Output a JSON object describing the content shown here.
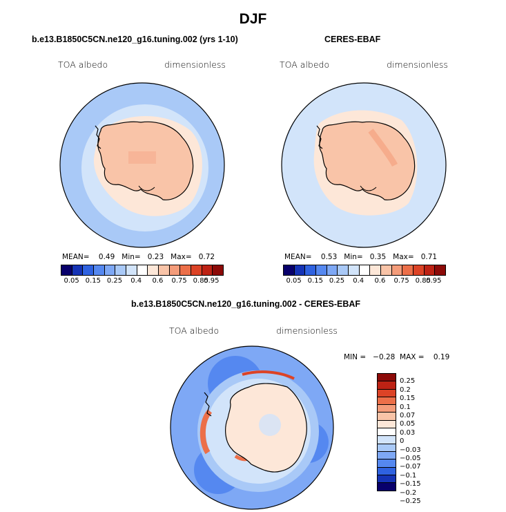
{
  "title": "DJF",
  "panels": [
    {
      "title": "b.e13.B1850C5CN.ne120_g16.tuning.002 (yrs 1-10)",
      "variable": "TOA albedo",
      "units": "dimensionless",
      "mean_label": "MEAN=",
      "mean": "0.49",
      "min_label": "Min=",
      "min": "0.23",
      "max_label": "Max=",
      "max": "0.72"
    },
    {
      "title": "CERES-EBAF",
      "variable": "TOA albedo",
      "units": "dimensionless",
      "mean_label": "MEAN=",
      "mean": "0.53",
      "min_label": "Min=",
      "min": "0.35",
      "max_label": "Max=",
      "max": "0.71"
    }
  ],
  "diff_panel": {
    "title": "b.e13.B1850C5CN.ne120_g16.tuning.002 - CERES-EBAF",
    "variable": "TOA albedo",
    "units": "dimensionless",
    "minmax_text": "MIN =   −0.28  MAX =    0.19"
  },
  "colorbar_abs": {
    "colors": [
      "#08006b",
      "#1533b5",
      "#2f62e0",
      "#5588f0",
      "#7ea8f5",
      "#a9c9f7",
      "#d2e4fa",
      "#ffffff",
      "#fde7d8",
      "#f9c4a8",
      "#f49c7a",
      "#ec6f49",
      "#dc4326",
      "#bd2214",
      "#8c0a08"
    ],
    "tick_labels": [
      "0.05",
      "0.15",
      "0.25",
      "0.4",
      "0.6",
      "0.75",
      "0.85",
      "0.95"
    ]
  },
  "colorbar_diff": {
    "colors": [
      "#8c0a08",
      "#bd2214",
      "#dc4326",
      "#ec6f49",
      "#f49c7a",
      "#f9c4a8",
      "#fde7d8",
      "#ffffff",
      "#d2e4fa",
      "#a9c9f7",
      "#7ea8f5",
      "#5588f0",
      "#2f62e0",
      "#1533b5",
      "#08006b"
    ],
    "tick_labels": [
      "0.25",
      "0.2",
      "0.15",
      "0.1",
      "0.07",
      "0.05",
      "0.03",
      "0",
      "−0.03",
      "−0.05",
      "−0.07",
      "−0.1",
      "−0.15",
      "−0.2",
      "−0.25"
    ]
  }
}
